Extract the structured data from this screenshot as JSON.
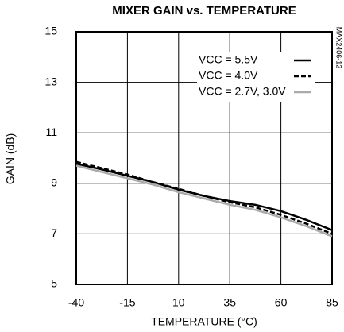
{
  "chart_data": {
    "type": "line",
    "title": "MIXER GAIN vs. TEMPERATURE",
    "x_label": "TEMPERATURE (°C)",
    "y_label": "GAIN (dB)",
    "annotation": "MAX2406-12",
    "x": [
      -40,
      -27.5,
      -15,
      -2.5,
      10,
      22.5,
      35,
      47.5,
      60,
      72.5,
      85
    ],
    "series": [
      {
        "name": "VCC = 5.5V",
        "color": "#000000",
        "dashed": false,
        "values": [
          9.78,
          9.55,
          9.3,
          9.05,
          8.75,
          8.5,
          8.3,
          8.15,
          7.9,
          7.55,
          7.15
        ]
      },
      {
        "name": "VCC = 4.0V",
        "color": "#000000",
        "dashed": true,
        "values": [
          9.85,
          9.6,
          9.35,
          9.05,
          8.78,
          8.5,
          8.25,
          8.05,
          7.75,
          7.4,
          7.0
        ]
      },
      {
        "name": "VCC = 2.7V, 3.0V",
        "color": "#aaaaaa",
        "dashed": false,
        "values": [
          9.7,
          9.45,
          9.2,
          8.95,
          8.65,
          8.4,
          8.15,
          7.95,
          7.65,
          7.3,
          6.9
        ]
      }
    ],
    "xlim": [
      -40,
      85
    ],
    "xticks": [
      -40,
      -15,
      10,
      35,
      60,
      85
    ],
    "ylim": [
      5,
      15
    ],
    "yticks": [
      5,
      7,
      9,
      11,
      13,
      15
    ],
    "grid": true,
    "legend": "upper-right"
  }
}
